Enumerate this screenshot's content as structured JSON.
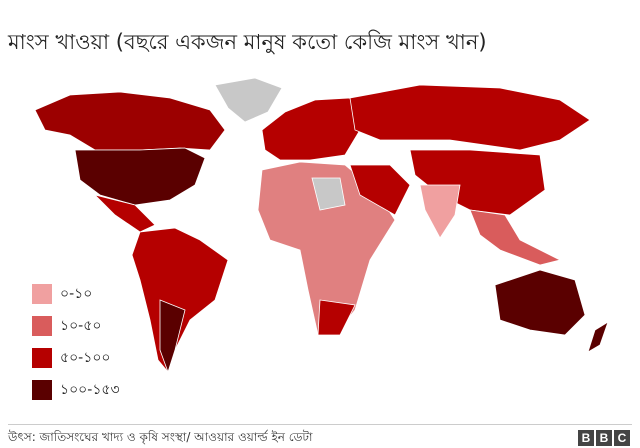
{
  "title": "মাংস খাওয়া (বছরে একজন মানুষ কতো কেজি মাংস খান)",
  "legend": [
    {
      "label": "০-১০",
      "color": "#f0a0a0"
    },
    {
      "label": "১০-৫০",
      "color": "#d95c5c"
    },
    {
      "label": "৫০-১০০",
      "color": "#b50000"
    },
    {
      "label": "১০০-১৫৩",
      "color": "#5a0000"
    }
  ],
  "source": "উৎস: জাতিসংঘের খাদ্য ও কৃষি সংস্থা/ আওয়ার ওয়ার্ল্ড ইন ডেটা",
  "logo": [
    "B",
    "B",
    "C"
  ]
}
